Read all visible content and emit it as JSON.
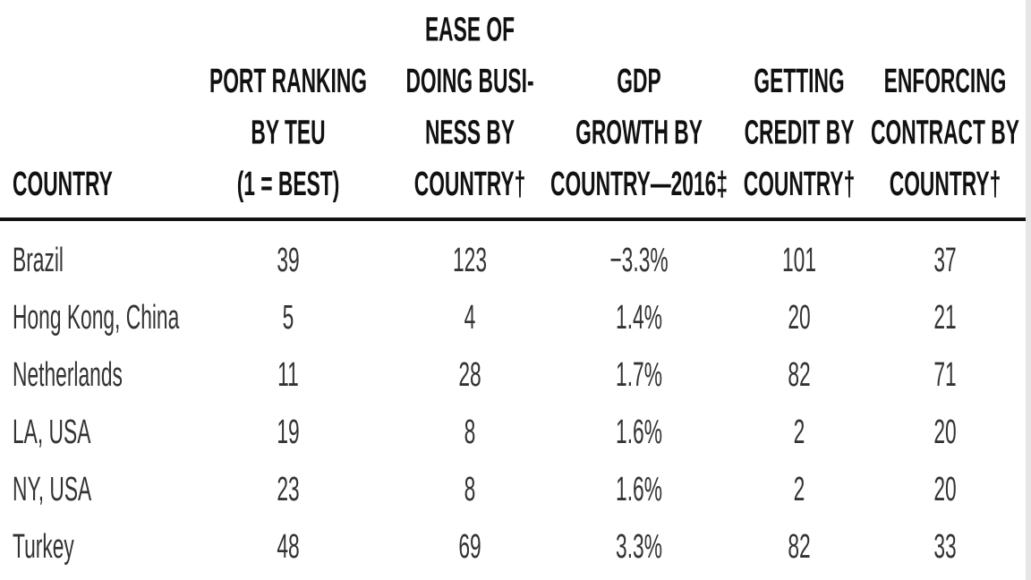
{
  "table": {
    "header": [
      [
        "COUNTRY"
      ],
      [
        "PORT RANKING",
        "BY TEU",
        "(1 = BEST)"
      ],
      [
        "EASE OF",
        "DOING BUSI-",
        "NESS BY",
        "COUNTRY†"
      ],
      [
        "GDP",
        "GROWTH BY",
        "COUNTRY—2016‡"
      ],
      [
        "GETTING",
        "CREDIT BY",
        "COUNTRY†"
      ],
      [
        "ENFORCING",
        "CONTRACT BY",
        "COUNTRY†"
      ]
    ],
    "rows": [
      [
        "Brazil",
        "39",
        "123",
        "−3.3%",
        "101",
        "37"
      ],
      [
        "Hong Kong, China",
        "5",
        "4",
        "1.4%",
        "20",
        "21"
      ],
      [
        "Netherlands",
        "11",
        "28",
        "1.7%",
        "82",
        "71"
      ],
      [
        "LA, USA",
        "19",
        "8",
        "1.6%",
        "2",
        "20"
      ],
      [
        "NY, USA",
        "23",
        "8",
        "1.6%",
        "2",
        "20"
      ],
      [
        "Turkey",
        "48",
        "69",
        "3.3%",
        "82",
        "33"
      ]
    ]
  }
}
